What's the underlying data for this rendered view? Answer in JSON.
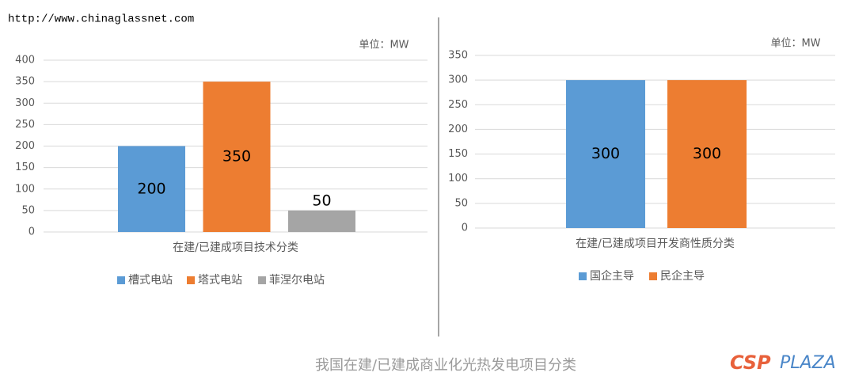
{
  "watermark": "http://www.chinaglassnet.com",
  "caption": "我国在建/已建成商业化光热发电项目分类",
  "logo": {
    "left": "CSP",
    "right": "PLAZA"
  },
  "chart_data": [
    {
      "type": "bar",
      "unit": "单位：MW",
      "categories": [
        "在建/已建成项目技术分类"
      ],
      "series": [
        {
          "name": "槽式电站",
          "color": "#5b9bd5",
          "values": [
            200
          ]
        },
        {
          "name": "塔式电站",
          "color": "#ed7d31",
          "values": [
            350
          ]
        },
        {
          "name": "菲涅尔电站",
          "color": "#a5a5a5",
          "values": [
            50
          ]
        }
      ],
      "ylim": [
        0,
        400
      ],
      "yticks": [
        0,
        50,
        100,
        150,
        200,
        250,
        300,
        350,
        400
      ],
      "grid": true,
      "legend": "bottom"
    },
    {
      "type": "bar",
      "unit": "单位：MW",
      "categories": [
        "在建/已建成项目开发商性质分类"
      ],
      "series": [
        {
          "name": "国企主导",
          "color": "#5b9bd5",
          "values": [
            300
          ]
        },
        {
          "name": "民企主导",
          "color": "#ed7d31",
          "values": [
            300
          ]
        }
      ],
      "ylim": [
        0,
        350
      ],
      "yticks": [
        0,
        50,
        100,
        150,
        200,
        250,
        300,
        350
      ],
      "grid": true,
      "legend": "bottom"
    }
  ]
}
